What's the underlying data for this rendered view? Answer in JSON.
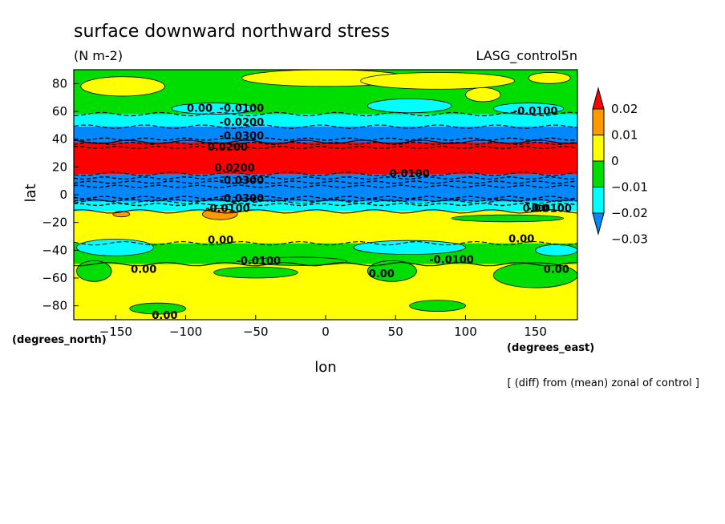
{
  "chart_data": {
    "type": "heatmap",
    "title": "surface downward northward stress",
    "subtitle": "(N m-2)",
    "dataset_label": "LASG_control5n",
    "xlabel": "lon",
    "ylabel": "lat",
    "x_unit_label": "(degrees_east)",
    "y_unit_label": "(degrees_north)",
    "footnote": "[ (diff) from (mean) zonal of control ]",
    "xlim": [
      -180,
      180
    ],
    "ylim": [
      -90,
      90
    ],
    "x_ticks": [
      -150,
      -100,
      -50,
      0,
      50,
      100,
      150
    ],
    "y_ticks": [
      80,
      60,
      40,
      20,
      0,
      -20,
      -40,
      -60,
      -80
    ],
    "x_tick_labels": [
      "−150",
      "−100",
      "−50",
      "0",
      "50",
      "100",
      "150"
    ],
    "y_tick_labels": [
      "80",
      "60",
      "40",
      "20",
      "0",
      "−20",
      "−40",
      "−60",
      "−80"
    ],
    "colorbar": {
      "levels": [
        0.02,
        0.01,
        0,
        -0.01,
        -0.02,
        -0.03
      ],
      "labels": [
        "0.02",
        "0.01",
        "0",
        "−0.01",
        "−0.02",
        "−0.03"
      ],
      "colors": [
        "#ff0000",
        "#ff9900",
        "#ffff00",
        "#00dd00",
        "#00ffff",
        "#0088ff"
      ]
    },
    "bands": [
      {
        "lat_from": 90,
        "lat_to": 58,
        "class": "0 to -0.01",
        "color": "#00dd00"
      },
      {
        "lat_from": 58,
        "lat_to": 49,
        "class": "-0.01 to -0.02",
        "color": "#00ffff"
      },
      {
        "lat_from": 49,
        "lat_to": 38,
        "class": "< -0.03",
        "color": "#0088ff"
      },
      {
        "lat_from": 38,
        "lat_to": 15,
        "class": "> 0.02",
        "color": "#ff0000"
      },
      {
        "lat_from": 15,
        "lat_to": -5,
        "class": "< -0.03",
        "color": "#0088ff"
      },
      {
        "lat_from": -5,
        "lat_to": -12,
        "class": "-0.01 to -0.02",
        "color": "#00ffff"
      },
      {
        "lat_from": -12,
        "lat_to": -35,
        "class": "0 to 0.01",
        "color": "#ffff00"
      },
      {
        "lat_from": -35,
        "lat_to": -50,
        "class": "0 to -0.01",
        "color": "#00dd00"
      },
      {
        "lat_from": -50,
        "lat_to": -90,
        "class": "0 to 0.01",
        "color": "#ffff00"
      }
    ],
    "patches": [
      {
        "lon": -175,
        "lat": 78,
        "w": 60,
        "h": 14,
        "color": "#ffff00"
      },
      {
        "lon": -60,
        "lat": 84,
        "w": 120,
        "h": 12,
        "color": "#ffff00"
      },
      {
        "lon": 25,
        "lat": 82,
        "w": 110,
        "h": 12,
        "color": "#ffff00"
      },
      {
        "lon": 145,
        "lat": 84,
        "w": 30,
        "h": 8,
        "color": "#ffff00"
      },
      {
        "lon": 100,
        "lat": 72,
        "w": 25,
        "h": 10,
        "color": "#ffff00"
      },
      {
        "lon": -110,
        "lat": 62,
        "w": 60,
        "h": 8,
        "color": "#00ffff"
      },
      {
        "lon": 30,
        "lat": 64,
        "w": 60,
        "h": 10,
        "color": "#00ffff"
      },
      {
        "lon": 120,
        "lat": 62,
        "w": 50,
        "h": 8,
        "color": "#00ffff"
      },
      {
        "lon": -88,
        "lat": -14,
        "w": 25,
        "h": 8,
        "color": "#ff9900"
      },
      {
        "lon": -152,
        "lat": -14,
        "w": 12,
        "h": 4,
        "color": "#ff9900"
      },
      {
        "lon": 90,
        "lat": -17,
        "w": 80,
        "h": 5,
        "color": "#00dd00"
      },
      {
        "lon": -178,
        "lat": -38,
        "w": 55,
        "h": 12,
        "color": "#00ffff"
      },
      {
        "lon": 20,
        "lat": -38,
        "w": 80,
        "h": 10,
        "color": "#00ffff"
      },
      {
        "lon": 150,
        "lat": -40,
        "w": 30,
        "h": 8,
        "color": "#00ffff"
      },
      {
        "lon": -55,
        "lat": -48,
        "w": 70,
        "h": 6,
        "color": "#00dd00"
      },
      {
        "lon": -178,
        "lat": -55,
        "w": 25,
        "h": 15,
        "color": "#00dd00"
      },
      {
        "lon": -80,
        "lat": -56,
        "w": 60,
        "h": 8,
        "color": "#00dd00"
      },
      {
        "lon": 30,
        "lat": -55,
        "w": 35,
        "h": 15,
        "color": "#00dd00"
      },
      {
        "lon": 120,
        "lat": -58,
        "w": 60,
        "h": 18,
        "color": "#00dd00"
      },
      {
        "lon": -140,
        "lat": -82,
        "w": 40,
        "h": 8,
        "color": "#00dd00"
      },
      {
        "lon": 60,
        "lat": -80,
        "w": 40,
        "h": 8,
        "color": "#00dd00"
      }
    ],
    "contour_labels": [
      {
        "lon": -90,
        "lat": 62,
        "text": "0.00"
      },
      {
        "lon": -60,
        "lat": 62,
        "text": "-0.0100"
      },
      {
        "lon": -60,
        "lat": 52,
        "text": "-0.0200"
      },
      {
        "lon": -60,
        "lat": 42,
        "text": "-0.0300"
      },
      {
        "lon": -70,
        "lat": 34,
        "text": "0.0200"
      },
      {
        "lon": -65,
        "lat": 19,
        "text": "0.0200"
      },
      {
        "lon": -60,
        "lat": 10,
        "text": "-0.0300"
      },
      {
        "lon": -60,
        "lat": -3,
        "text": "-0.0300"
      },
      {
        "lon": -70,
        "lat": -10,
        "text": "-0.0100"
      },
      {
        "lon": 60,
        "lat": 15,
        "text": "0.0100"
      },
      {
        "lon": 150,
        "lat": 60,
        "text": "-0.0100"
      },
      {
        "lon": 150,
        "lat": -10,
        "text": "0.00"
      },
      {
        "lon": 160,
        "lat": -10,
        "text": "-0.0100"
      },
      {
        "lon": -75,
        "lat": -33,
        "text": "0.00"
      },
      {
        "lon": -48,
        "lat": -48,
        "text": "-0.0100"
      },
      {
        "lon": -130,
        "lat": -54,
        "text": "0.00"
      },
      {
        "lon": 40,
        "lat": -57,
        "text": "0.00"
      },
      {
        "lon": 90,
        "lat": -47,
        "text": "-0.0100"
      },
      {
        "lon": 140,
        "lat": -32,
        "text": "0.00"
      },
      {
        "lon": 165,
        "lat": -54,
        "text": "0.00"
      },
      {
        "lon": -115,
        "lat": -87,
        "text": "0.00"
      }
    ]
  }
}
